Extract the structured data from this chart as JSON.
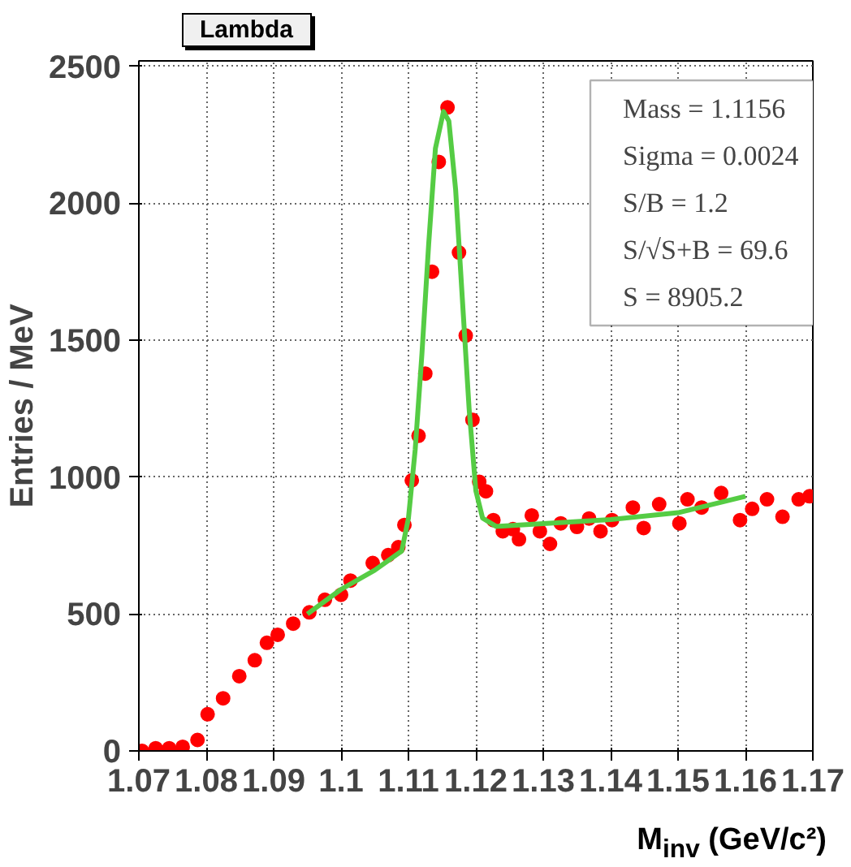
{
  "chart_data": {
    "type": "scatter",
    "title": "Lambda",
    "xlabel": "M$_{inv}$ (GeV/c²)",
    "ylabel": "Entries / MeV",
    "xlim": [
      1.07,
      1.17
    ],
    "ylim": [
      0,
      2520
    ],
    "xticks": [
      1.07,
      1.08,
      1.09,
      {
        "value": 1.1,
        "label": "1.1"
      },
      1.11,
      1.12,
      1.13,
      1.14,
      1.15,
      1.16,
      1.17
    ],
    "yticks": [
      0,
      500,
      1000,
      1500,
      2000,
      2500
    ],
    "grid": true,
    "annotations": [
      "Mass = 1.1156",
      "Sigma = 0.0024",
      "S/B = 1.2",
      "S/√S+B = 69.6",
      "S = 8905.2"
    ],
    "series": [
      {
        "color": "#ff0000",
        "marker": "circle",
        "x": [
          1.0705,
          1.0725,
          1.0745,
          1.0765,
          1.0787,
          1.0802,
          1.0825,
          1.0849,
          1.0872,
          1.089,
          1.0906,
          1.0929,
          1.0953,
          1.0976,
          1.1,
          1.1014,
          1.1047,
          1.107,
          1.1085,
          1.1094,
          1.1105,
          1.1115,
          1.1125,
          1.1135,
          1.1145,
          1.1158,
          1.1175,
          1.1185,
          1.1195,
          1.1205,
          1.1215,
          1.1226,
          1.124,
          1.1255,
          1.1264,
          1.1283,
          1.1295,
          1.131,
          1.1326,
          1.135,
          1.1368,
          1.1385,
          1.1402,
          1.1433,
          1.1449,
          1.1472,
          1.1502,
          1.1514,
          1.1535,
          1.1564,
          1.1592,
          1.161,
          1.1632,
          1.1655,
          1.1679,
          1.1695
        ],
        "values": [
          0,
          10,
          10,
          15,
          40,
          134,
          192,
          273,
          331,
          395,
          424,
          465,
          506,
          552,
          570,
          622,
          686,
          715,
          744,
          825,
          988,
          1151,
          1378,
          1750,
          2151,
          2350,
          1820,
          1517,
          1209,
          983,
          948,
          843,
          802,
          810,
          773,
          860,
          802,
          756,
          831,
          818,
          849,
          802,
          843,
          889,
          814,
          901,
          831,
          919,
          889,
          942,
          843,
          884,
          919,
          855,
          919,
          930
        ]
      },
      {
        "type": "line",
        "color": "#55cc44",
        "x": [
          1.095,
          1.1,
          1.105,
          1.109,
          1.11,
          1.111,
          1.112,
          1.113,
          1.114,
          1.1152,
          1.116,
          1.117,
          1.118,
          1.119,
          1.12,
          1.121,
          1.123,
          1.13,
          1.14,
          1.15,
          1.16
        ],
        "values": [
          500,
          590,
          660,
          730,
          850,
          1100,
          1450,
          1850,
          2200,
          2335,
          2300,
          2050,
          1650,
          1250,
          950,
          850,
          820,
          830,
          845,
          870,
          930
        ]
      }
    ]
  }
}
